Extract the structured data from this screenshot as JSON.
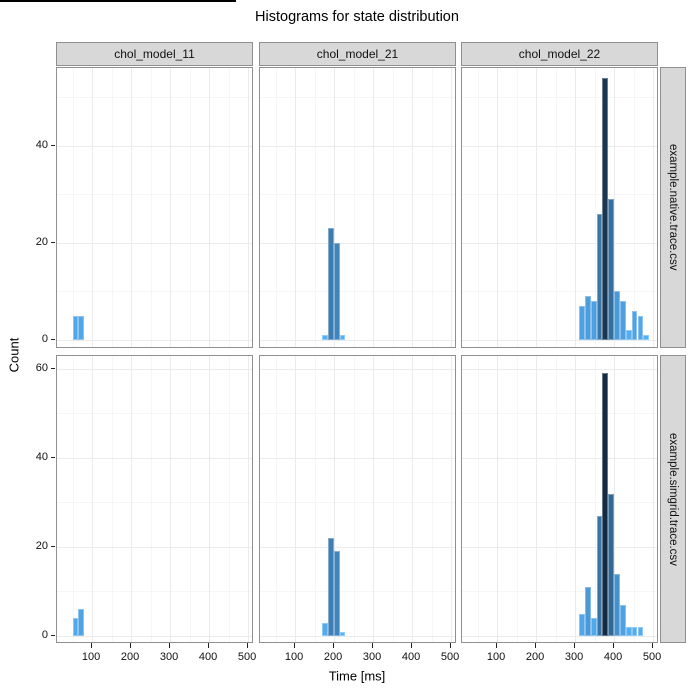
{
  "chart_data": {
    "type": "bar",
    "subtype": "faceted-histogram",
    "title": "Histograms for state distribution",
    "xlabel": "Time [ms]",
    "ylabel": "Count",
    "x_ticks": [
      100,
      200,
      300,
      400,
      500
    ],
    "x_minor_ticks": [
      50,
      150,
      250,
      350,
      450
    ],
    "x_range": [
      10,
      515
    ],
    "grid": "on",
    "legend": "none",
    "count_max": 59,
    "col_facets": [
      "chol_model_11",
      "chol_model_21",
      "chol_model_22"
    ],
    "row_facets": [
      "example.native.trace.csv",
      "example.simgrid.trace.csv"
    ],
    "rows": [
      {
        "label": "example.native.trace.csv",
        "y_ticks": [
          0,
          20,
          40
        ],
        "y_minor_ticks": [
          10,
          30,
          50
        ],
        "y_range": [
          -1.65,
          56.0
        ],
        "panels": [
          {
            "col": "chol_model_11",
            "bars": [
              {
                "x": 50,
                "w": 14,
                "count": 5
              },
              {
                "x": 64,
                "w": 14,
                "count": 5
              }
            ]
          },
          {
            "col": "chol_model_21",
            "bars": [
              {
                "x": 169,
                "w": 15,
                "count": 1
              },
              {
                "x": 184,
                "w": 15,
                "count": 23
              },
              {
                "x": 199,
                "w": 15,
                "count": 20
              },
              {
                "x": 214,
                "w": 15,
                "count": 1
              }
            ]
          },
          {
            "col": "chol_model_22",
            "bars": [
              {
                "x": 310,
                "w": 15,
                "count": 7
              },
              {
                "x": 325,
                "w": 15,
                "count": 9
              },
              {
                "x": 340,
                "w": 15,
                "count": 8
              },
              {
                "x": 355,
                "w": 15,
                "count": 26
              },
              {
                "x": 370,
                "w": 15,
                "count": 54
              },
              {
                "x": 385,
                "w": 15,
                "count": 29
              },
              {
                "x": 400,
                "w": 15,
                "count": 10
              },
              {
                "x": 415,
                "w": 15,
                "count": 8
              },
              {
                "x": 430,
                "w": 15,
                "count": 2
              },
              {
                "x": 445,
                "w": 15,
                "count": 6
              },
              {
                "x": 460,
                "w": 15,
                "count": 5
              },
              {
                "x": 475,
                "w": 15,
                "count": 1
              }
            ]
          }
        ]
      },
      {
        "label": "example.simgrid.trace.csv",
        "y_ticks": [
          0,
          20,
          40,
          60
        ],
        "y_minor_ticks": [
          10,
          30,
          50
        ],
        "y_range": [
          -1.8,
          62.9
        ],
        "panels": [
          {
            "col": "chol_model_11",
            "bars": [
              {
                "x": 50,
                "w": 14,
                "count": 4
              },
              {
                "x": 64,
                "w": 14,
                "count": 6
              }
            ]
          },
          {
            "col": "chol_model_21",
            "bars": [
              {
                "x": 169,
                "w": 15,
                "count": 3
              },
              {
                "x": 184,
                "w": 15,
                "count": 22
              },
              {
                "x": 199,
                "w": 15,
                "count": 19
              },
              {
                "x": 214,
                "w": 15,
                "count": 1
              }
            ]
          },
          {
            "col": "chol_model_22",
            "bars": [
              {
                "x": 310,
                "w": 15,
                "count": 5
              },
              {
                "x": 325,
                "w": 15,
                "count": 11
              },
              {
                "x": 340,
                "w": 15,
                "count": 4
              },
              {
                "x": 355,
                "w": 15,
                "count": 27
              },
              {
                "x": 370,
                "w": 15,
                "count": 59
              },
              {
                "x": 385,
                "w": 15,
                "count": 32
              },
              {
                "x": 400,
                "w": 15,
                "count": 14
              },
              {
                "x": 415,
                "w": 15,
                "count": 7
              },
              {
                "x": 430,
                "w": 15,
                "count": 2
              },
              {
                "x": 445,
                "w": 15,
                "count": 2
              },
              {
                "x": 460,
                "w": 15,
                "count": 2
              }
            ]
          }
        ]
      }
    ]
  },
  "colors": {
    "fill_low": "#56B1F7",
    "fill_high": "#132B43",
    "strip_bg": "#d8d8d8",
    "strip_border": "#8f8f8f",
    "panel_border": "#909090",
    "grid_major": "#ebebeb",
    "grid_minor": "#f6f6f6",
    "tick_color": "#222222",
    "text_color": "#111111",
    "artifact_line": "#000000"
  }
}
